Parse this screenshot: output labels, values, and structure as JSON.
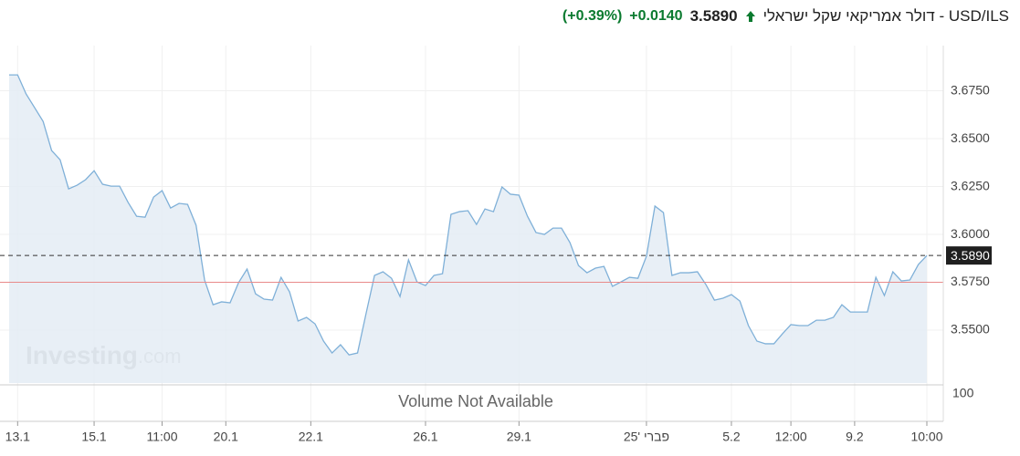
{
  "header": {
    "title": "USD/ILS - דולר אמריקאי שקל ישראלי",
    "price": "3.5890",
    "change": "+0.0140",
    "change_percent": "(+0.39%)"
  },
  "chart_data": {
    "type": "area",
    "values": [
      3.6833,
      3.6833,
      3.6733,
      3.6662,
      3.659,
      3.6438,
      3.639,
      3.6238,
      3.6257,
      3.6286,
      3.6333,
      3.6262,
      3.6252,
      3.6252,
      3.6167,
      3.6095,
      3.609,
      3.6195,
      3.6229,
      3.6138,
      3.6162,
      3.6157,
      3.6048,
      3.5762,
      3.5633,
      3.5648,
      3.5643,
      3.5748,
      3.5819,
      3.569,
      3.5662,
      3.5657,
      3.5776,
      3.57,
      3.5548,
      3.5567,
      3.5533,
      3.5443,
      3.5381,
      3.5424,
      3.5371,
      3.5381,
      3.5586,
      3.5786,
      3.5805,
      3.5771,
      3.5676,
      3.5867,
      3.5752,
      3.5733,
      3.5786,
      3.5795,
      3.6105,
      3.6119,
      3.6124,
      3.6052,
      3.6133,
      3.6119,
      3.6248,
      3.621,
      3.6205,
      3.6095,
      3.601,
      3.6,
      3.6033,
      3.6033,
      3.5957,
      3.5838,
      3.58,
      3.5824,
      3.5833,
      3.5729,
      3.5752,
      3.5776,
      3.5771,
      3.5886,
      3.6148,
      3.6114,
      3.5786,
      3.58,
      3.58,
      3.5805,
      3.5738,
      3.5657,
      3.5667,
      3.5686,
      3.5652,
      3.5524,
      3.5443,
      3.5429,
      3.5429,
      3.5481,
      3.5529,
      3.5524,
      3.5524,
      3.5552,
      3.5552,
      3.5567,
      3.5633,
      3.5595,
      3.5595,
      3.5595,
      3.5776,
      3.5681,
      3.5805,
      3.5757,
      3.5762,
      3.5843,
      3.589
    ],
    "color": "#7fb0d8",
    "fill": "#e4ecf5",
    "ylim": [
      3.5224,
      3.6986
    ],
    "yticks": [
      {
        "value": 3.55,
        "label": "3.5500"
      },
      {
        "value": 3.575,
        "label": "3.5750"
      },
      {
        "value": 3.6,
        "label": "3.6000"
      },
      {
        "value": 3.625,
        "label": "3.6250"
      },
      {
        "value": 3.65,
        "label": "3.6500"
      },
      {
        "value": 3.675,
        "label": "3.6750"
      }
    ],
    "xticks": [
      {
        "value": 1,
        "label": "13.1"
      },
      {
        "value": 10,
        "label": "15.1"
      },
      {
        "value": 18,
        "label": "11:00"
      },
      {
        "value": 25.5,
        "label": "20.1"
      },
      {
        "value": 35.5,
        "label": "22.1"
      },
      {
        "value": 49,
        "label": "26.1"
      },
      {
        "value": 60,
        "label": "29.1"
      },
      {
        "value": 75,
        "label": "פברי '25"
      },
      {
        "value": 85,
        "label": "5.2"
      },
      {
        "value": 92,
        "label": "12:00"
      },
      {
        "value": 99.5,
        "label": "9.2"
      },
      {
        "value": 108,
        "label": "10:00"
      }
    ],
    "last_price": {
      "value": 3.589,
      "label": "3.5890"
    },
    "previous_close": 3.575,
    "volume_note": "Volume Not Available",
    "volume_ytick": 100,
    "watermark": [
      "Investing",
      ".com"
    ],
    "grid": true
  }
}
